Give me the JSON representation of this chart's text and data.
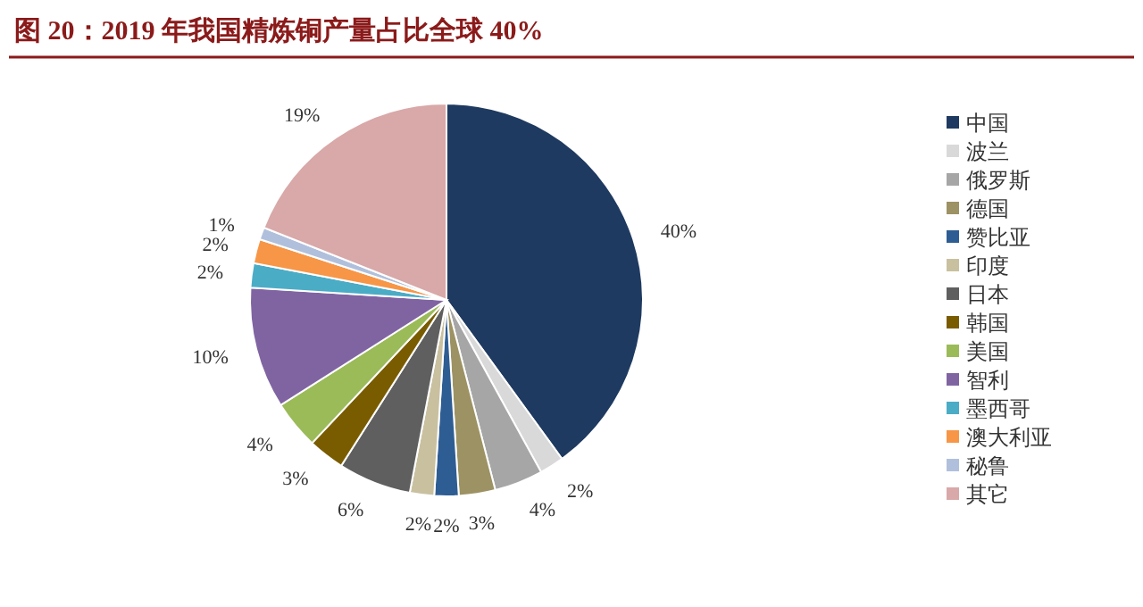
{
  "chart_data": {
    "type": "pie",
    "title": "图 20：2019 年我国精炼铜产量占比全球 40%",
    "categories": [
      "中国",
      "波兰",
      "俄罗斯",
      "德国",
      "赞比亚",
      "印度",
      "日本",
      "韩国",
      "美国",
      "智利",
      "墨西哥",
      "澳大利亚",
      "秘鲁",
      "其它"
    ],
    "values": [
      40,
      2,
      4,
      3,
      2,
      2,
      6,
      3,
      4,
      10,
      2,
      2,
      1,
      19
    ],
    "colors": [
      "#1f3a60",
      "#d9d9d9",
      "#a6a6a6",
      "#9c9263",
      "#2e5d93",
      "#c9c0a0",
      "#5f5f5f",
      "#7a5c00",
      "#9bbb59",
      "#8064a2",
      "#4bacc6",
      "#f79646",
      "#b0c0dc",
      "#d9a8a8"
    ],
    "value_labels": [
      "40%",
      "2%",
      "4%",
      "3%",
      "2%",
      "2%",
      "6%",
      "3%",
      "4%",
      "10%",
      "2%",
      "2%",
      "1%",
      "19%"
    ],
    "legend": "right"
  }
}
